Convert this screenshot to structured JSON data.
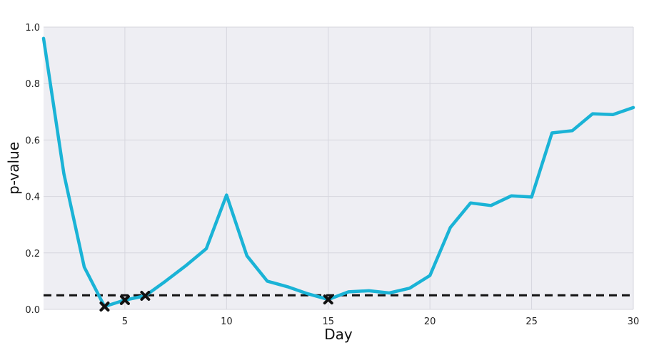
{
  "chart_data": {
    "type": "line",
    "title": "",
    "xlabel": "Day",
    "ylabel": "p-value",
    "xlim": [
      1,
      30
    ],
    "ylim": [
      0,
      1.0
    ],
    "x_ticks": [
      5,
      10,
      15,
      20,
      25,
      30
    ],
    "x_tick_labels": [
      "5",
      "10",
      "15",
      "20",
      "25",
      "30"
    ],
    "y_ticks": [
      0,
      0.2,
      0.4,
      0.6,
      0.8,
      1.0
    ],
    "y_tick_labels": [
      "0.0",
      "0.2",
      "0.4",
      "0.6",
      "0.8",
      "1.0"
    ],
    "grid": true,
    "series": [
      {
        "color": "#1ab3d6",
        "x": [
          1,
          2,
          3,
          4,
          5,
          6,
          7,
          8,
          9,
          10,
          11,
          12,
          13,
          14,
          15,
          16,
          17,
          18,
          19,
          20,
          21,
          22,
          23,
          24,
          25,
          26,
          27,
          28,
          29,
          30
        ],
        "y": [
          0.96,
          0.48,
          0.15,
          0.01,
          0.033,
          0.048,
          0.1,
          0.155,
          0.215,
          0.405,
          0.19,
          0.1,
          0.08,
          0.055,
          0.035,
          0.062,
          0.066,
          0.058,
          0.075,
          0.12,
          0.29,
          0.377,
          0.368,
          0.402,
          0.398,
          0.625,
          0.633,
          0.693,
          0.69,
          0.715
        ]
      }
    ],
    "threshold": {
      "y": 0.05,
      "color": "#111111",
      "style": "dashed"
    },
    "markers": {
      "shape": "x",
      "color": "#111111",
      "points": [
        {
          "x": 4,
          "y": 0.01
        },
        {
          "x": 5,
          "y": 0.033
        },
        {
          "x": 6,
          "y": 0.048
        },
        {
          "x": 15,
          "y": 0.035
        }
      ]
    },
    "colors": {
      "plot_background": "#eeeef3",
      "grid": "#d6d6de",
      "line": "#1ab3d6"
    }
  }
}
